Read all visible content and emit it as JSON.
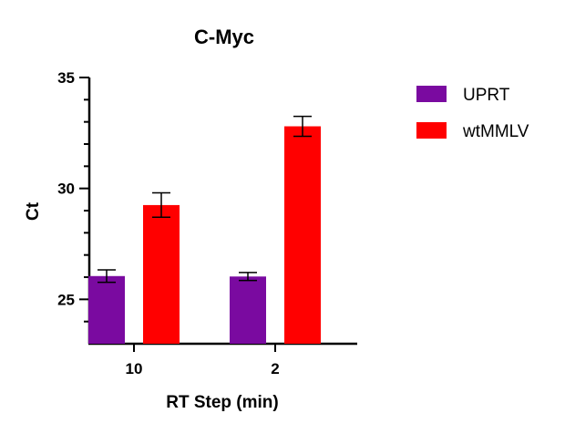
{
  "chart_data": {
    "type": "bar",
    "title": "C-Myc",
    "xlabel": "RT Step (min)",
    "ylabel": "Ct",
    "categories": [
      "10",
      "2"
    ],
    "series": [
      {
        "name": "UPRT",
        "color": "#7a0aa0",
        "values": [
          26.05,
          26.03
        ],
        "errors": [
          0.28,
          0.18
        ]
      },
      {
        "name": "wtMMLV",
        "color": "#ff0000",
        "values": [
          29.25,
          32.8
        ],
        "errors": [
          0.55,
          0.45
        ]
      }
    ],
    "ylim": [
      23,
      35
    ],
    "yticks": [
      25,
      30,
      35
    ],
    "ytick_labels": [
      "25",
      "30",
      "35"
    ],
    "y_minor_step": 1,
    "grid": false,
    "legend": "right"
  }
}
